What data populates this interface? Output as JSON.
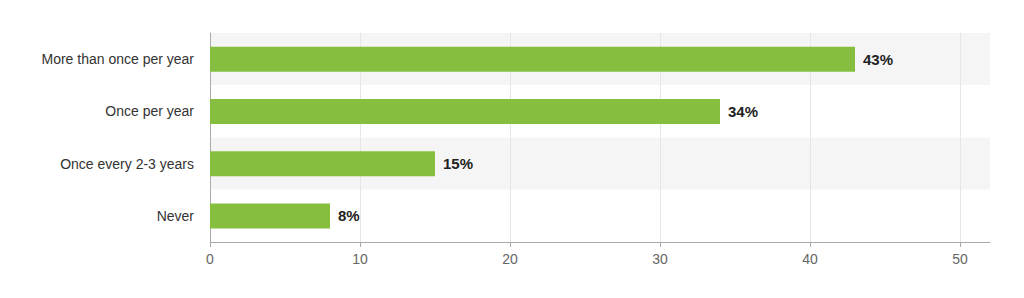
{
  "chart_data": {
    "type": "bar",
    "orientation": "horizontal",
    "categories": [
      "More than once per year",
      "Once per year",
      "Once every 2-3 years",
      "Never"
    ],
    "values": [
      43,
      34,
      15,
      8
    ],
    "value_labels": [
      "43%",
      "34%",
      "15%",
      "8%"
    ],
    "color": "#86bf40",
    "xlim": [
      0,
      52
    ],
    "xticks": [
      0,
      10,
      20,
      30,
      40,
      50
    ],
    "grid": true,
    "data_labels": true
  }
}
